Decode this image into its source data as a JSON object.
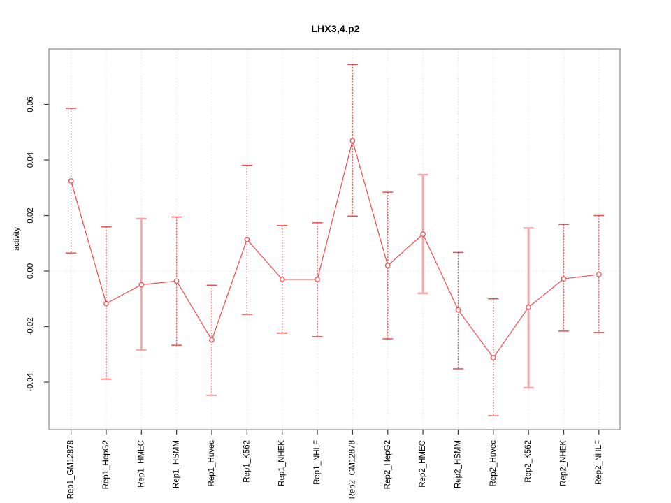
{
  "title": "LHX3,4.p2",
  "chart_data": {
    "type": "line",
    "subtype": "points-with-error-bars",
    "title": "LHX3,4.p2",
    "xlabel": "",
    "ylabel": "activity",
    "legend_position": "none",
    "grid": {
      "vertical_category_lines": true,
      "zero_reference_line": true
    },
    "categories": [
      "Rep1_GM12878",
      "Rep1_HepG2",
      "Rep1_HMEC",
      "Rep1_HSMM",
      "Rep1_Huvec",
      "Rep1_K562",
      "Rep1_NHEK",
      "Rep1_NHLF",
      "Rep2_GM12878",
      "Rep2_HepG2",
      "Rep2_HMEC",
      "Rep2_HSMM",
      "Rep2_Huvec",
      "Rep2_K562",
      "Rep2_NHEK",
      "Rep2_NHLF"
    ],
    "series": [
      {
        "name": "activity",
        "values": [
          0.0325,
          -0.0117,
          -0.0049,
          -0.0036,
          -0.0248,
          0.0114,
          -0.003,
          -0.003,
          0.047,
          0.002,
          0.0133,
          -0.014,
          -0.0312,
          -0.013,
          -0.0028,
          -0.0012
        ],
        "upper": [
          0.0586,
          0.0159,
          0.0189,
          0.0195,
          -0.0051,
          0.0381,
          0.0164,
          0.0174,
          0.0744,
          0.0284,
          0.0347,
          0.0067,
          -0.01,
          0.0155,
          0.0168,
          0.02
        ],
        "lower": [
          0.0065,
          -0.0389,
          -0.0284,
          -0.0267,
          -0.0447,
          -0.0156,
          -0.0223,
          -0.0236,
          0.0198,
          -0.0244,
          -0.008,
          -0.0352,
          -0.0521,
          -0.042,
          -0.0216,
          -0.0221
        ]
      }
    ],
    "thick_bar_indices": [
      2,
      10,
      13
    ],
    "ytick_values": [
      -0.04,
      -0.02,
      0.0,
      0.02,
      0.04,
      0.06
    ],
    "ytick_labels": [
      "-0.04",
      "-0.02",
      "0.00",
      "0.02",
      "0.04",
      "0.06"
    ],
    "ylim": [
      -0.0571,
      0.08
    ],
    "colors": {
      "series": "#f04a4a",
      "thick_bar": "#f6a8a8",
      "grid": "#d9d9d9",
      "box": "#8a8a8a",
      "tick": "#3a3a3a",
      "text": "#000000",
      "background": "#ffffff"
    }
  }
}
